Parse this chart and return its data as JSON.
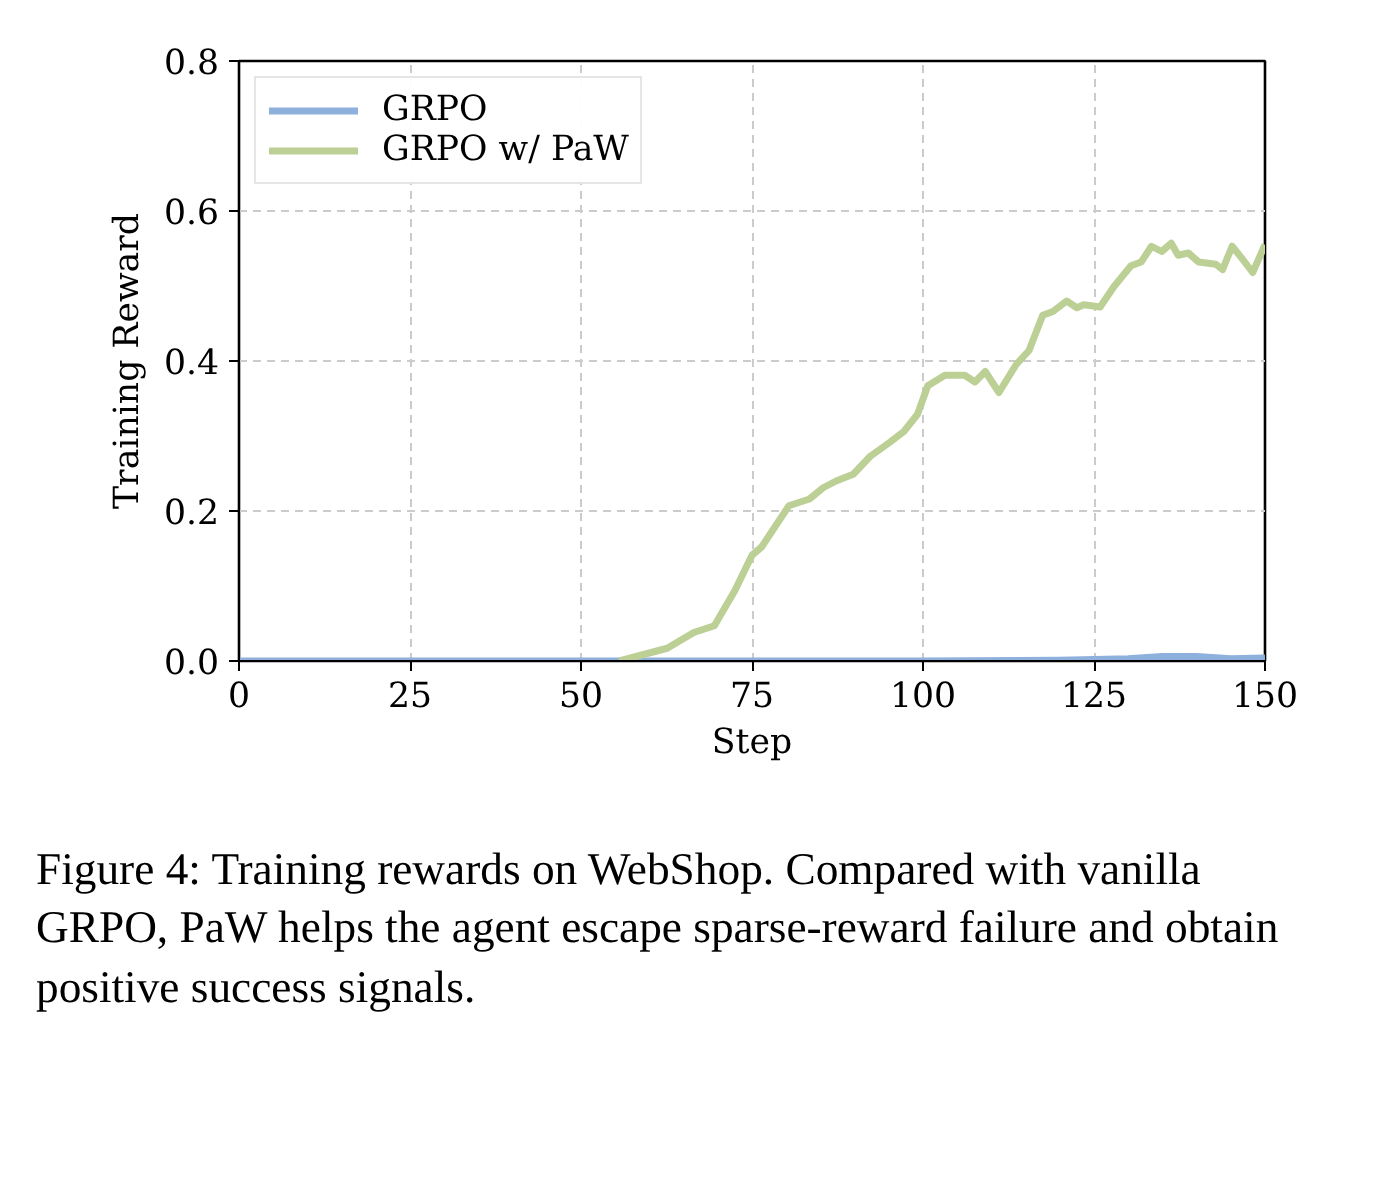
{
  "chart_data": {
    "type": "line",
    "xlabel": "Step",
    "ylabel": "Training Reward",
    "xlim": [
      0,
      150
    ],
    "ylim": [
      0,
      0.8
    ],
    "xticks": [
      0,
      25,
      50,
      75,
      100,
      125,
      150
    ],
    "yticks": [
      {
        "value": 0,
        "label": "0.0"
      },
      {
        "value": 0.2,
        "label": "0.2"
      },
      {
        "value": 0.4,
        "label": "0.4"
      },
      {
        "value": 0.6,
        "label": "0.6"
      },
      {
        "value": 0.8,
        "label": "0.8"
      }
    ],
    "grid": true,
    "legend": "top left",
    "line_style": "solid",
    "marker": "none",
    "series": [
      {
        "name": "GRPO",
        "color": "#8eb0dc",
        "x": [
          0,
          25,
          50,
          75,
          100,
          120,
          130,
          135,
          140,
          145,
          150
        ],
        "values": [
          0,
          0,
          0,
          0,
          0,
          0.001,
          0.003,
          0.006,
          0.006,
          0.003,
          0.004
        ]
      },
      {
        "name": "GRPO w/ PaW",
        "color": "#bcd096",
        "x": [
          55.6,
          62.6,
          66.5,
          69.5,
          72.5,
          75.0,
          76.4,
          80.4,
          83.4,
          85.4,
          87.3,
          89.8,
          92.3,
          95.2,
          97.2,
          99.2,
          100.7,
          103.2,
          106.1,
          107.6,
          109.1,
          111.1,
          113.6,
          115.5,
          117.5,
          119.0,
          121.0,
          122.5,
          123.5,
          125.9,
          127.9,
          130.4,
          131.9,
          133.4,
          134.9,
          136.3,
          137.3,
          138.8,
          140.3,
          142.8,
          143.8,
          145.2,
          146.7,
          148.2,
          150.0
        ],
        "values": [
          0.0,
          0.017,
          0.038,
          0.047,
          0.094,
          0.141,
          0.152,
          0.207,
          0.216,
          0.231,
          0.24,
          0.249,
          0.273,
          0.292,
          0.306,
          0.329,
          0.367,
          0.381,
          0.381,
          0.372,
          0.386,
          0.358,
          0.395,
          0.414,
          0.461,
          0.466,
          0.48,
          0.471,
          0.475,
          0.472,
          0.499,
          0.527,
          0.532,
          0.553,
          0.546,
          0.557,
          0.541,
          0.544,
          0.532,
          0.529,
          0.522,
          0.553,
          0.536,
          0.518,
          0.555
        ]
      }
    ],
    "annotations": [
      "Figure 4: Training rewards on WebShop. Compared with vanilla GRPO, PaW helps the agent escape sparse-reward failure and obtain positive success signals."
    ]
  }
}
